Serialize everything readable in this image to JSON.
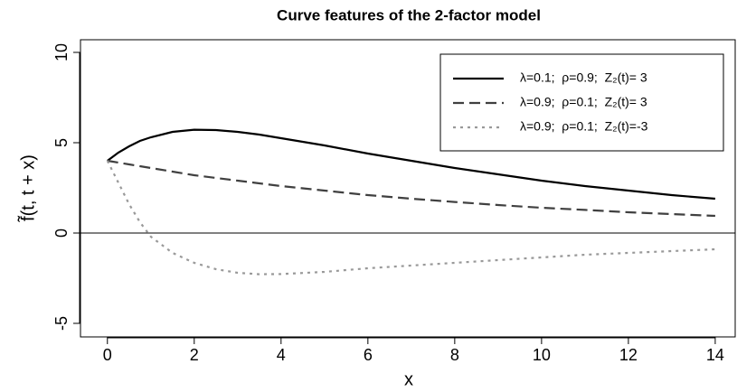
{
  "chart_data": {
    "type": "line",
    "title": "Curve features of the 2-factor model",
    "x_label": "x",
    "y_label": "f̃(t, t + x)",
    "x": [
      0,
      0.25,
      0.5,
      0.75,
      1,
      1.5,
      2,
      2.5,
      3,
      3.5,
      4,
      5,
      6,
      7,
      8,
      9,
      10,
      11,
      12,
      13,
      14
    ],
    "series": [
      {
        "name": "λ=0.1;  ρ=0.9;  Z₂(t)= 3",
        "color": "#000000",
        "linestyle": "solid",
        "values": [
          4.0,
          4.45,
          4.8,
          5.1,
          5.3,
          5.6,
          5.72,
          5.7,
          5.6,
          5.45,
          5.25,
          4.85,
          4.4,
          4.0,
          3.6,
          3.25,
          2.9,
          2.6,
          2.35,
          2.1,
          1.9
        ]
      },
      {
        "name": "λ=0.9;  ρ=0.1;  Z₂(t)= 3",
        "color": "#404040",
        "linestyle": "dashed",
        "values": [
          4.0,
          3.9,
          3.8,
          3.7,
          3.6,
          3.4,
          3.2,
          3.05,
          2.9,
          2.75,
          2.6,
          2.35,
          2.1,
          1.9,
          1.72,
          1.55,
          1.4,
          1.28,
          1.15,
          1.05,
          0.95
        ]
      },
      {
        "name": "λ=0.9;  ρ=0.1;  Z₂(t)=-3",
        "color": "#999999",
        "linestyle": "dotted",
        "values": [
          4.0,
          2.8,
          1.6,
          0.6,
          -0.2,
          -1.1,
          -1.65,
          -2.0,
          -2.2,
          -2.28,
          -2.27,
          -2.15,
          -1.95,
          -1.8,
          -1.65,
          -1.5,
          -1.35,
          -1.2,
          -1.1,
          -1.0,
          -0.9
        ]
      }
    ],
    "xlim": [
      -0.62,
      14.46
    ],
    "ylim": [
      -5.75,
      10.7
    ],
    "xticks": [
      0,
      2,
      4,
      6,
      8,
      10,
      12,
      14
    ],
    "yticks": [
      -5,
      0,
      5,
      10
    ],
    "reference_line": 0,
    "legend": "top-right",
    "grid": false
  }
}
